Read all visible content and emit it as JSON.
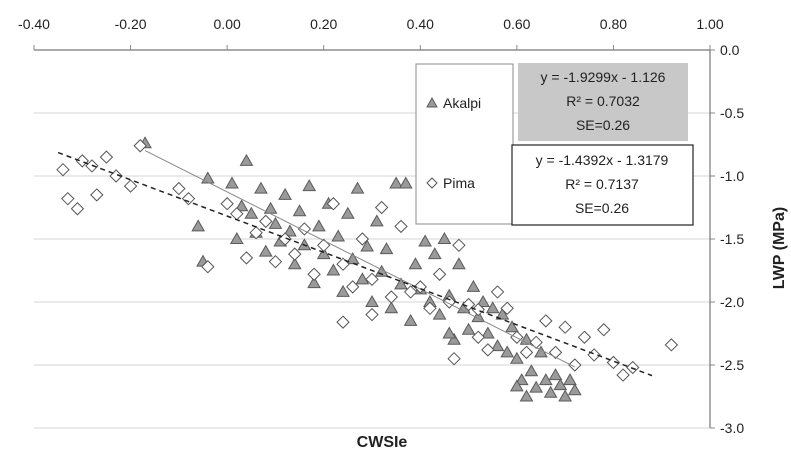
{
  "chart_data": {
    "type": "scatter",
    "xlabel": "CWSIe",
    "ylabel": "LWP (MPa)",
    "xlim": [
      -0.4,
      1.0
    ],
    "ylim": [
      -3.0,
      0.0
    ],
    "x_ticks": [
      "-0.40",
      "-0.20",
      "0.00",
      "0.20",
      "0.40",
      "0.60",
      "0.80",
      "1.00"
    ],
    "y_ticks": [
      "0.0",
      "-0.5",
      "-1.0",
      "-1.5",
      "-2.0",
      "-2.5",
      "-3.0"
    ],
    "x_axis_position": "top",
    "y_axis_position": "right",
    "grid": "horizontal",
    "legend": {
      "position": "top-right-inside",
      "entries": [
        "Akalpi",
        "Pima"
      ]
    },
    "series": [
      {
        "name": "Akalpi",
        "marker": "triangle",
        "color": "#8c8c8c",
        "trendline": {
          "slope": -1.9299,
          "intercept": -1.126,
          "x_range": [
            -0.17,
            0.72
          ],
          "style": "solid"
        },
        "equation": [
          "y = -1.9299x - 1.126",
          "R² = 0.7032",
          "SE=0.26"
        ],
        "points": [
          [
            -0.17,
            -0.74
          ],
          [
            -0.05,
            -1.68
          ],
          [
            -0.04,
            -1.02
          ],
          [
            -0.06,
            -1.4
          ],
          [
            0.01,
            -1.06
          ],
          [
            0.02,
            -1.5
          ],
          [
            0.03,
            -1.24
          ],
          [
            0.04,
            -0.88
          ],
          [
            0.05,
            -1.3
          ],
          [
            0.06,
            -1.45
          ],
          [
            0.07,
            -1.1
          ],
          [
            0.08,
            -1.6
          ],
          [
            0.09,
            -1.26
          ],
          [
            0.1,
            -1.38
          ],
          [
            0.11,
            -1.52
          ],
          [
            0.12,
            -1.15
          ],
          [
            0.13,
            -1.44
          ],
          [
            0.14,
            -1.7
          ],
          [
            0.15,
            -1.28
          ],
          [
            0.16,
            -1.55
          ],
          [
            0.17,
            -1.08
          ],
          [
            0.18,
            -1.85
          ],
          [
            0.19,
            -1.4
          ],
          [
            0.2,
            -1.62
          ],
          [
            0.21,
            -1.22
          ],
          [
            0.22,
            -1.75
          ],
          [
            0.23,
            -1.48
          ],
          [
            0.24,
            -1.92
          ],
          [
            0.25,
            -1.3
          ],
          [
            0.26,
            -1.66
          ],
          [
            0.27,
            -1.1
          ],
          [
            0.28,
            -1.82
          ],
          [
            0.29,
            -1.56
          ],
          [
            0.3,
            -2.0
          ],
          [
            0.31,
            -1.36
          ],
          [
            0.32,
            -1.76
          ],
          [
            0.33,
            -1.58
          ],
          [
            0.34,
            -2.05
          ],
          [
            0.35,
            -1.06
          ],
          [
            0.36,
            -1.86
          ],
          [
            0.37,
            -1.06
          ],
          [
            0.38,
            -2.15
          ],
          [
            0.39,
            -1.7
          ],
          [
            0.4,
            -1.9
          ],
          [
            0.41,
            -1.52
          ],
          [
            0.42,
            -2.0
          ],
          [
            0.43,
            -1.62
          ],
          [
            0.44,
            -2.1
          ],
          [
            0.45,
            -1.5
          ],
          [
            0.46,
            -1.95
          ],
          [
            0.47,
            -2.3
          ],
          [
            0.48,
            -1.7
          ],
          [
            0.49,
            -2.05
          ],
          [
            0.5,
            -2.22
          ],
          [
            0.51,
            -1.88
          ],
          [
            0.52,
            -2.12
          ],
          [
            0.54,
            -2.25
          ],
          [
            0.55,
            -2.05
          ],
          [
            0.56,
            -2.35
          ],
          [
            0.57,
            -2.1
          ],
          [
            0.58,
            -2.4
          ],
          [
            0.59,
            -2.2
          ],
          [
            0.6,
            -2.45
          ],
          [
            0.61,
            -2.62
          ],
          [
            0.62,
            -2.3
          ],
          [
            0.63,
            -2.55
          ],
          [
            0.64,
            -2.68
          ],
          [
            0.65,
            -2.4
          ],
          [
            0.66,
            -2.62
          ],
          [
            0.67,
            -2.72
          ],
          [
            0.68,
            -2.58
          ],
          [
            0.69,
            -2.66
          ],
          [
            0.7,
            -2.75
          ],
          [
            0.71,
            -2.62
          ],
          [
            0.72,
            -2.7
          ],
          [
            0.6,
            -2.67
          ],
          [
            0.62,
            -2.75
          ],
          [
            0.53,
            -2.0
          ],
          [
            0.46,
            -2.25
          ]
        ]
      },
      {
        "name": "Pima",
        "marker": "diamond",
        "color": "#555555",
        "trendline": {
          "slope": -1.4392,
          "intercept": -1.3179,
          "x_range": [
            -0.35,
            0.88
          ],
          "style": "dashed"
        },
        "equation": [
          "y = -1.4392x - 1.3179",
          "R² = 0.7137",
          "SE=0.26"
        ],
        "points": [
          [
            -0.34,
            -0.95
          ],
          [
            -0.33,
            -1.18
          ],
          [
            -0.31,
            -1.26
          ],
          [
            -0.3,
            -0.88
          ],
          [
            -0.28,
            -0.92
          ],
          [
            -0.27,
            -1.15
          ],
          [
            -0.25,
            -0.85
          ],
          [
            -0.23,
            -1.0
          ],
          [
            -0.2,
            -1.08
          ],
          [
            -0.18,
            -0.76
          ],
          [
            -0.1,
            -1.1
          ],
          [
            -0.08,
            -1.18
          ],
          [
            -0.04,
            -1.72
          ],
          [
            0.0,
            -1.22
          ],
          [
            0.02,
            -1.3
          ],
          [
            0.04,
            -1.65
          ],
          [
            0.06,
            -1.45
          ],
          [
            0.08,
            -1.36
          ],
          [
            0.1,
            -1.68
          ],
          [
            0.12,
            -1.5
          ],
          [
            0.14,
            -1.62
          ],
          [
            0.16,
            -1.42
          ],
          [
            0.18,
            -1.78
          ],
          [
            0.2,
            -1.55
          ],
          [
            0.22,
            -1.22
          ],
          [
            0.24,
            -1.7
          ],
          [
            0.26,
            -1.88
          ],
          [
            0.28,
            -1.5
          ],
          [
            0.3,
            -1.82
          ],
          [
            0.32,
            -1.25
          ],
          [
            0.34,
            -1.96
          ],
          [
            0.36,
            -1.4
          ],
          [
            0.38,
            -1.92
          ],
          [
            0.4,
            -1.88
          ],
          [
            0.42,
            -2.05
          ],
          [
            0.44,
            -1.78
          ],
          [
            0.46,
            -2.0
          ],
          [
            0.47,
            -2.45
          ],
          [
            0.48,
            -1.55
          ],
          [
            0.5,
            -2.02
          ],
          [
            0.52,
            -2.28
          ],
          [
            0.54,
            -2.38
          ],
          [
            0.56,
            -1.92
          ],
          [
            0.58,
            -2.05
          ],
          [
            0.6,
            -2.28
          ],
          [
            0.62,
            -2.4
          ],
          [
            0.64,
            -2.32
          ],
          [
            0.66,
            -2.15
          ],
          [
            0.68,
            -2.4
          ],
          [
            0.7,
            -2.2
          ],
          [
            0.72,
            -2.5
          ],
          [
            0.74,
            -2.28
          ],
          [
            0.76,
            -2.42
          ],
          [
            0.78,
            -2.22
          ],
          [
            0.8,
            -2.48
          ],
          [
            0.82,
            -2.58
          ],
          [
            0.84,
            -2.52
          ],
          [
            0.92,
            -2.34
          ],
          [
            0.24,
            -2.16
          ],
          [
            0.3,
            -2.1
          ],
          [
            0.52,
            -2.06
          ]
        ]
      }
    ]
  }
}
